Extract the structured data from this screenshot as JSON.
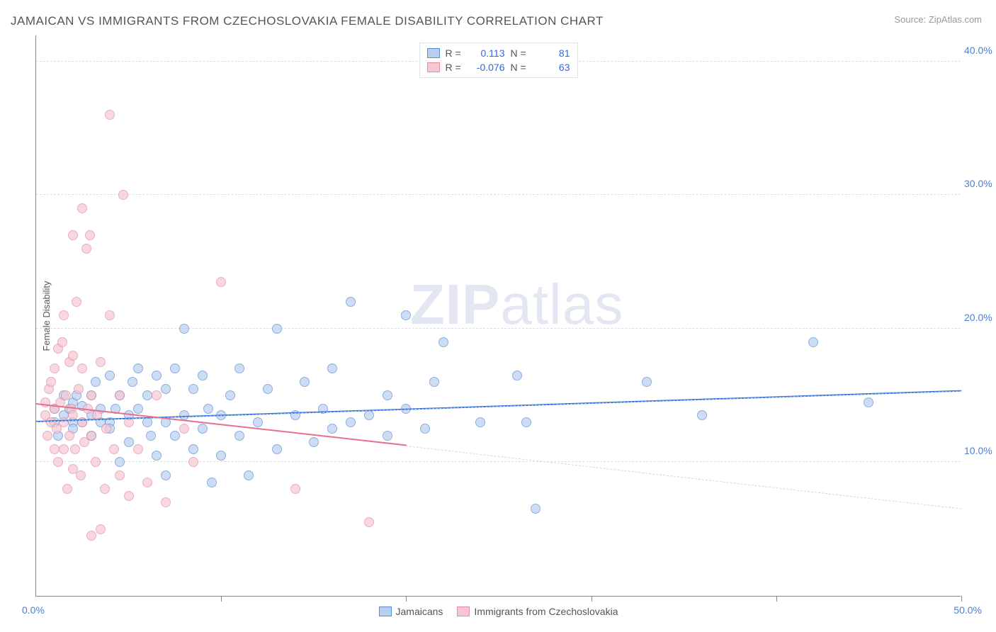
{
  "title": "JAMAICAN VS IMMIGRANTS FROM CZECHOSLOVAKIA FEMALE DISABILITY CORRELATION CHART",
  "source": "Source: ZipAtlas.com",
  "y_axis_label": "Female Disability",
  "watermark_bold": "ZIP",
  "watermark_light": "atlas",
  "chart": {
    "type": "scatter",
    "background_color": "#ffffff",
    "grid_color": "#dddddd",
    "axis_color": "#888888",
    "xlim": [
      0,
      50
    ],
    "ylim": [
      0,
      42
    ],
    "x_ticks": [
      0,
      10,
      20,
      30,
      40,
      50
    ],
    "x_tick_labels": {
      "left": "0.0%",
      "right": "50.0%"
    },
    "y_gridlines": [
      10,
      20,
      30,
      40
    ],
    "y_tick_labels": [
      "10.0%",
      "20.0%",
      "30.0%",
      "40.0%"
    ],
    "tick_label_color": "#4a7fd6",
    "title_fontsize": 17,
    "label_fontsize": 13,
    "point_radius": 7,
    "point_opacity": 0.7,
    "series": [
      {
        "name": "Jamaicans",
        "fill_color": "#b8d0f0",
        "stroke_color": "#5a8cd6",
        "regression": {
          "x1": 0,
          "y1": 13.0,
          "x2": 50,
          "y2": 15.3,
          "color": "#2f6fd6",
          "width": 2
        },
        "ext_dash": {
          "x1": 0,
          "y1": 13.0,
          "x2": 50,
          "y2": 15.3,
          "color": "#b8d0f0"
        },
        "R_label": "R =",
        "R_value": "0.113",
        "N_label": "N =",
        "N_value": "81",
        "points": [
          [
            1,
            13
          ],
          [
            1,
            14
          ],
          [
            1.2,
            12
          ],
          [
            1.5,
            15
          ],
          [
            1.5,
            13.5
          ],
          [
            1.8,
            14
          ],
          [
            2,
            13
          ],
          [
            2,
            14.5
          ],
          [
            2,
            12.5
          ],
          [
            2.2,
            15
          ],
          [
            2.5,
            13
          ],
          [
            2.5,
            14.2
          ],
          [
            3,
            13.5
          ],
          [
            3,
            15
          ],
          [
            3,
            12
          ],
          [
            3.2,
            16
          ],
          [
            3.5,
            13
          ],
          [
            3.5,
            14
          ],
          [
            4,
            16.5
          ],
          [
            4,
            13
          ],
          [
            4,
            12.5
          ],
          [
            4.3,
            14
          ],
          [
            4.5,
            10
          ],
          [
            4.5,
            15
          ],
          [
            5,
            13.5
          ],
          [
            5,
            11.5
          ],
          [
            5.2,
            16
          ],
          [
            5.5,
            17
          ],
          [
            5.5,
            14
          ],
          [
            6,
            13
          ],
          [
            6,
            15
          ],
          [
            6.2,
            12
          ],
          [
            6.5,
            16.5
          ],
          [
            6.5,
            10.5
          ],
          [
            7,
            13
          ],
          [
            7,
            15.5
          ],
          [
            7,
            9
          ],
          [
            7.5,
            17
          ],
          [
            7.5,
            12
          ],
          [
            8,
            13.5
          ],
          [
            8,
            20
          ],
          [
            8.5,
            11
          ],
          [
            8.5,
            15.5
          ],
          [
            9,
            16.5
          ],
          [
            9,
            12.5
          ],
          [
            9.3,
            14
          ],
          [
            9.5,
            8.5
          ],
          [
            10,
            13.5
          ],
          [
            10,
            10.5
          ],
          [
            10.5,
            15
          ],
          [
            11,
            17
          ],
          [
            11,
            12
          ],
          [
            11.5,
            9
          ],
          [
            12,
            13
          ],
          [
            12.5,
            15.5
          ],
          [
            13,
            11
          ],
          [
            13,
            20
          ],
          [
            14,
            13.5
          ],
          [
            14.5,
            16
          ],
          [
            15,
            11.5
          ],
          [
            15.5,
            14
          ],
          [
            16,
            12.5
          ],
          [
            16,
            17
          ],
          [
            17,
            13
          ],
          [
            17,
            22
          ],
          [
            18,
            13.5
          ],
          [
            19,
            15
          ],
          [
            19,
            12
          ],
          [
            20,
            21
          ],
          [
            20,
            14
          ],
          [
            21,
            12.5
          ],
          [
            21.5,
            16
          ],
          [
            22,
            19
          ],
          [
            24,
            13
          ],
          [
            26,
            16.5
          ],
          [
            26.5,
            13
          ],
          [
            27,
            6.5
          ],
          [
            33,
            16
          ],
          [
            36,
            13.5
          ],
          [
            42,
            19
          ],
          [
            45,
            14.5
          ]
        ]
      },
      {
        "name": "Immigrants from Czechoslovakia",
        "fill_color": "#f5c8d3",
        "stroke_color": "#e8899f",
        "regression": {
          "x1": 0,
          "y1": 14.3,
          "x2": 20,
          "y2": 11.2,
          "color": "#e86f8c",
          "width": 2
        },
        "ext_dash": {
          "x1": 20,
          "y1": 11.2,
          "x2": 50,
          "y2": 6.5,
          "color": "#f5c8d3"
        },
        "R_label": "R =",
        "R_value": "-0.076",
        "N_label": "N =",
        "N_value": "63",
        "points": [
          [
            0.5,
            13.5
          ],
          [
            0.5,
            14.5
          ],
          [
            0.6,
            12
          ],
          [
            0.7,
            15.5
          ],
          [
            0.8,
            13
          ],
          [
            0.8,
            16
          ],
          [
            1,
            14
          ],
          [
            1,
            11
          ],
          [
            1,
            17
          ],
          [
            1.1,
            12.5
          ],
          [
            1.2,
            18.5
          ],
          [
            1.2,
            10
          ],
          [
            1.3,
            14.5
          ],
          [
            1.4,
            19
          ],
          [
            1.5,
            13
          ],
          [
            1.5,
            11
          ],
          [
            1.5,
            21
          ],
          [
            1.6,
            15
          ],
          [
            1.7,
            8
          ],
          [
            1.8,
            17.5
          ],
          [
            1.8,
            12
          ],
          [
            1.9,
            14
          ],
          [
            2,
            9.5
          ],
          [
            2,
            13.5
          ],
          [
            2,
            18
          ],
          [
            2,
            27
          ],
          [
            2.1,
            11
          ],
          [
            2.2,
            22
          ],
          [
            2.3,
            15.5
          ],
          [
            2.4,
            9
          ],
          [
            2.5,
            13
          ],
          [
            2.5,
            29
          ],
          [
            2.5,
            17
          ],
          [
            2.6,
            11.5
          ],
          [
            2.7,
            26
          ],
          [
            2.8,
            14
          ],
          [
            2.9,
            27
          ],
          [
            3,
            12
          ],
          [
            3,
            15
          ],
          [
            3,
            4.5
          ],
          [
            3.2,
            10
          ],
          [
            3.3,
            13.5
          ],
          [
            3.5,
            5
          ],
          [
            3.5,
            17.5
          ],
          [
            3.7,
            8
          ],
          [
            3.8,
            12.5
          ],
          [
            4,
            21
          ],
          [
            4,
            36
          ],
          [
            4.2,
            11
          ],
          [
            4.5,
            9
          ],
          [
            4.5,
            15
          ],
          [
            4.7,
            30
          ],
          [
            5,
            7.5
          ],
          [
            5,
            13
          ],
          [
            5.5,
            11
          ],
          [
            6,
            8.5
          ],
          [
            6.5,
            15
          ],
          [
            7,
            7
          ],
          [
            8,
            12.5
          ],
          [
            8.5,
            10
          ],
          [
            10,
            23.5
          ],
          [
            14,
            8
          ],
          [
            18,
            5.5
          ]
        ]
      }
    ]
  },
  "bottom_legend": [
    {
      "label": "Jamaicans",
      "fill": "#b8d0f0",
      "stroke": "#5a8cd6"
    },
    {
      "label": "Immigrants from Czechoslovakia",
      "fill": "#f5c8d3",
      "stroke": "#e8899f"
    }
  ]
}
